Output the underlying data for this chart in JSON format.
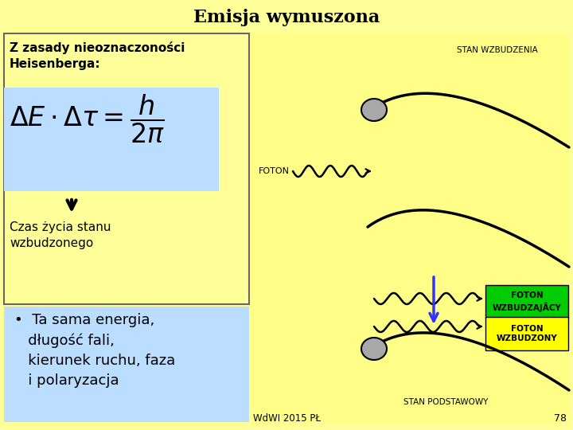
{
  "title": "Emisja wymuszona",
  "title_fontsize": 16,
  "title_fontweight": "bold",
  "bg_color": "#FFFF99",
  "formula_box_color": "#BBDDFF",
  "bullet_box_color": "#BBDDFF",
  "text_z_zasady": "Z zasady nieoznaczoności\nHeisenberga:",
  "text_czas": "Czas życia stanu\nwzbudzonego",
  "label_stan_wzbudzenia": "STAN WZBUDZENIA",
  "label_foton_left": "FOTON",
  "label_stan_podstawowy": "STAN PODSTAWOWY",
  "label_foton_wzbudzajacy": "FOTON\nWZBUDZAJÄCY",
  "label_foton_wzbudzony": "FOTON\nWZBUDZONY",
  "label_bottom_left": "WdWI 2015 PŁ",
  "label_bottom_right": "78",
  "green_box_color": "#00CC00",
  "yellow_box_color": "#FFFF00",
  "arc_color": "#000000",
  "electron_color": "#A8A8A8",
  "blue_arrow_color": "#3333FF"
}
